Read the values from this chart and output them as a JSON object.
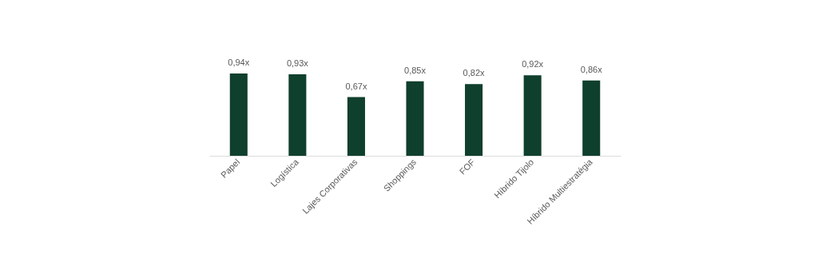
{
  "chart_data": {
    "type": "bar",
    "categories": [
      "Papel",
      "Logística",
      "Lajes Corporativas",
      "Shoppings",
      "FOF",
      "Híbrido Tijolo",
      "Híbrido Multiestratégia"
    ],
    "values": [
      0.94,
      0.93,
      0.67,
      0.85,
      0.82,
      0.92,
      0.86
    ],
    "value_labels": [
      "0,94x",
      "0,93x",
      "0,67x",
      "0,85x",
      "0,82x",
      "0,92x",
      "0,86x"
    ],
    "color": "#0f3f2d"
  }
}
